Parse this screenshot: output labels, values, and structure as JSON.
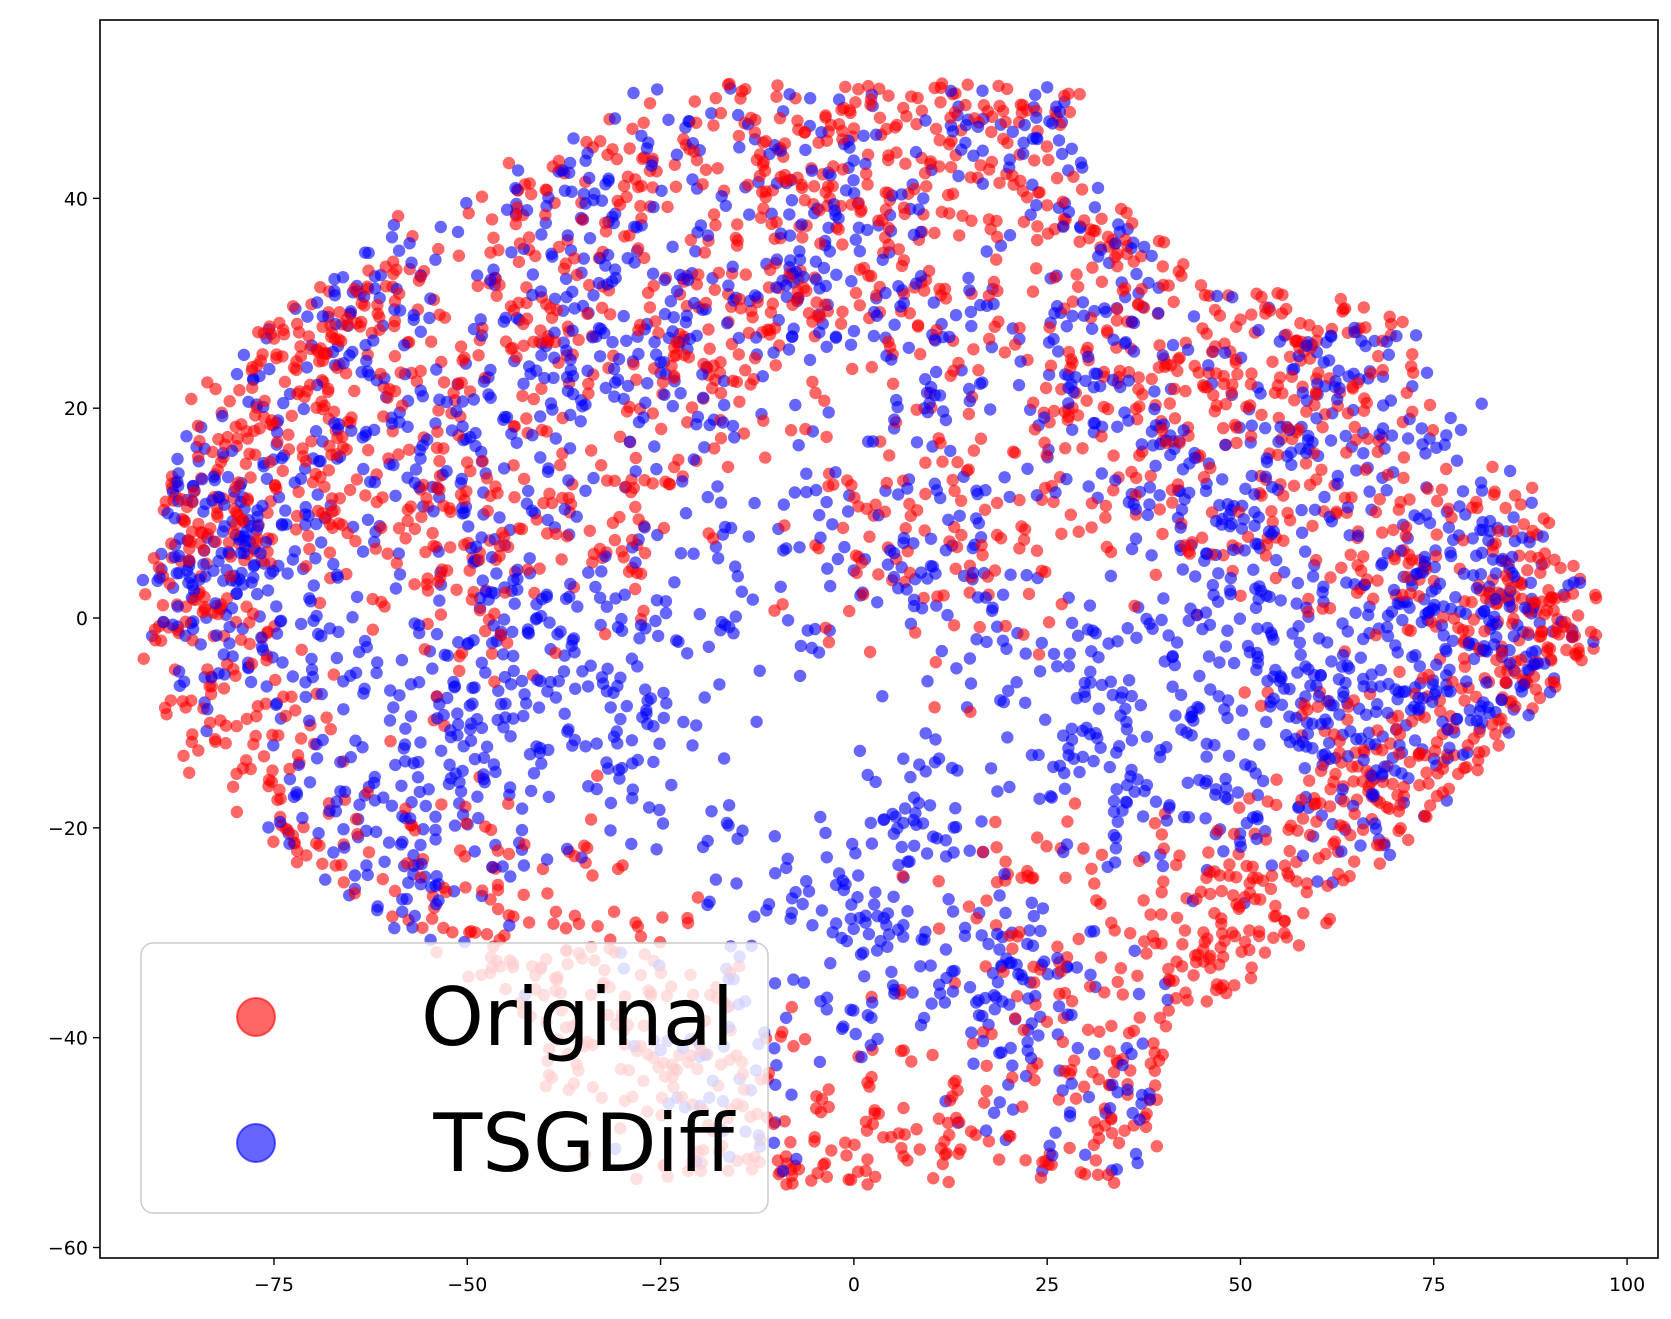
{
  "chart_data": {
    "type": "scatter",
    "title": "",
    "xlabel": "",
    "ylabel": "",
    "xlim": [
      -97.5,
      104
    ],
    "ylim": [
      -61,
      57
    ],
    "grid": false,
    "xticks": [
      -75,
      -50,
      -25,
      0,
      25,
      50,
      75,
      100
    ],
    "xtick_labels": [
      "−75",
      "−50",
      "−25",
      "0",
      "25",
      "50",
      "75",
      "100"
    ],
    "yticks": [
      -60,
      -40,
      -20,
      0,
      20,
      40
    ],
    "ytick_labels": [
      "−60",
      "−40",
      "−20",
      "0",
      "20",
      "40"
    ],
    "legend_position": "lower-left",
    "point_alpha": 0.6,
    "series": [
      {
        "name": "Original",
        "color": "#ff0000",
        "points_description": "approx. 3000 t-SNE embedded points spread across the whole cloud",
        "x_range": [
          -91,
          95
        ],
        "y_range": [
          -56,
          52
        ],
        "sample_points": [
          [
            -90,
            15
          ],
          [
            -88,
            3
          ],
          [
            -86,
            -1
          ],
          [
            -80,
            14
          ],
          [
            -78,
            -10
          ],
          [
            -77,
            -20
          ],
          [
            -74,
            -22
          ],
          [
            -72,
            17
          ],
          [
            -70,
            28
          ],
          [
            -67,
            34
          ],
          [
            -62,
            25
          ],
          [
            -58,
            10
          ],
          [
            -55,
            -35
          ],
          [
            -52,
            -25
          ],
          [
            -50,
            5
          ],
          [
            -47,
            -40
          ],
          [
            -44,
            26
          ],
          [
            -40,
            35
          ],
          [
            -37,
            -30
          ],
          [
            -33,
            44
          ],
          [
            -30,
            12
          ],
          [
            -27,
            -37
          ],
          [
            -22,
            48
          ],
          [
            -20,
            25
          ],
          [
            -17,
            -45
          ],
          [
            -14,
            30
          ],
          [
            -10,
            43
          ],
          [
            -8,
            -55
          ],
          [
            -4,
            46
          ],
          [
            -1,
            10
          ],
          [
            2,
            -52
          ],
          [
            4,
            47
          ],
          [
            8,
            30
          ],
          [
            11,
            -47
          ],
          [
            14,
            42
          ],
          [
            17,
            5
          ],
          [
            20,
            51
          ],
          [
            22,
            -27
          ],
          [
            25,
            48
          ],
          [
            28,
            20
          ],
          [
            30,
            -45
          ],
          [
            33,
            38
          ],
          [
            36,
            -48
          ],
          [
            38,
            33
          ],
          [
            41,
            15
          ],
          [
            44,
            -28
          ],
          [
            47,
            -35
          ],
          [
            50,
            25
          ],
          [
            52,
            -30
          ],
          [
            55,
            10
          ],
          [
            58,
            28
          ],
          [
            61,
            -15
          ],
          [
            65,
            22
          ],
          [
            67,
            -20
          ],
          [
            70,
            -25
          ],
          [
            72,
            5
          ],
          [
            75,
            -22
          ],
          [
            80,
            -10
          ],
          [
            84,
            5
          ],
          [
            88,
            -5
          ],
          [
            91,
            0
          ],
          [
            94,
            -2
          ]
        ]
      },
      {
        "name": "TSGDiff",
        "color": "#0000ff",
        "points_description": "approx. 3000 t-SNE embedded points interleaved with the Original points",
        "x_range": [
          -89,
          92
        ],
        "y_range": [
          -55,
          51
        ],
        "sample_points": [
          [
            -86,
            9
          ],
          [
            -84,
            5
          ],
          [
            -80,
            2
          ],
          [
            -76,
            8
          ],
          [
            -72,
            20
          ],
          [
            -69,
            -5
          ],
          [
            -66,
            -24
          ],
          [
            -62,
            30
          ],
          [
            -59,
            -12
          ],
          [
            -55,
            18
          ],
          [
            -52,
            -18
          ],
          [
            -48,
            7
          ],
          [
            -45,
            -10
          ],
          [
            -42,
            28
          ],
          [
            -40,
            -5
          ],
          [
            -36,
            38
          ],
          [
            -33,
            -3
          ],
          [
            -30,
            20
          ],
          [
            -26,
            -12
          ],
          [
            -22,
            29
          ],
          [
            -20,
            47
          ],
          [
            -17,
            -42
          ],
          [
            -13,
            5
          ],
          [
            -10,
            -28
          ],
          [
            -8,
            36
          ],
          [
            -4,
            27
          ],
          [
            0,
            40
          ],
          [
            2,
            -30
          ],
          [
            6,
            10
          ],
          [
            9,
            -18
          ],
          [
            12,
            27
          ],
          [
            15,
            4
          ],
          [
            18,
            -35
          ],
          [
            21,
            48
          ],
          [
            24,
            -38
          ],
          [
            27,
            25
          ],
          [
            30,
            -5
          ],
          [
            33,
            -13
          ],
          [
            35,
            35
          ],
          [
            37,
            -45
          ],
          [
            40,
            16
          ],
          [
            43,
            -10
          ],
          [
            46,
            8
          ],
          [
            49,
            -18
          ],
          [
            53,
            4
          ],
          [
            56,
            22
          ],
          [
            59,
            -3
          ],
          [
            62,
            -8
          ],
          [
            65,
            20
          ],
          [
            68,
            -10
          ],
          [
            72,
            -18
          ],
          [
            75,
            2
          ],
          [
            79,
            7
          ],
          [
            82,
            -5
          ],
          [
            86,
            0
          ],
          [
            90,
            -4
          ]
        ]
      }
    ]
  }
}
